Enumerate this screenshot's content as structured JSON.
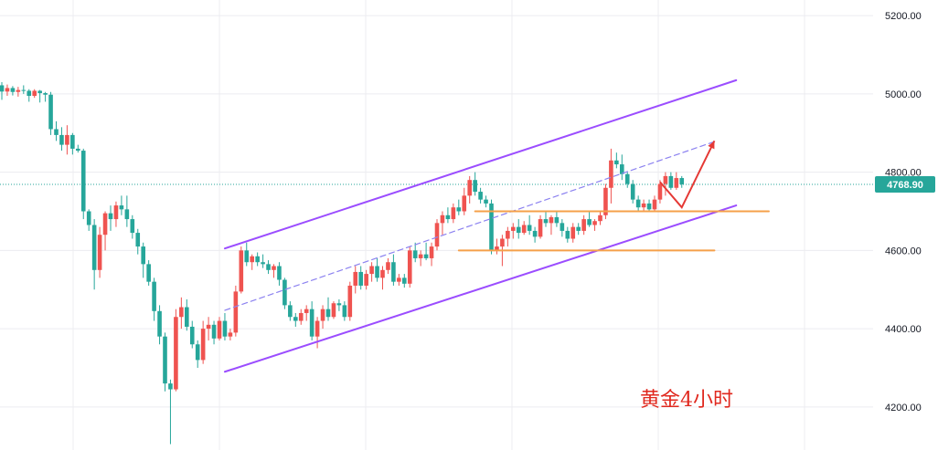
{
  "chart_data": {
    "type": "candlestick",
    "timeframe_caption": "黄金4小时",
    "ylim": [
      4090,
      5240
    ],
    "yticks": [
      4200,
      4400,
      4600,
      4800,
      5000,
      5200
    ],
    "ytick_labels": [
      "4200.00",
      "4400.00",
      "4600.00",
      "4800.00",
      "5000.00",
      "5200.00"
    ],
    "last_price": 4768.9,
    "last_price_label": "4768.90",
    "grid": true,
    "colors": {
      "up": "#ef5350",
      "down": "#26a69a",
      "channel": "#9b4dff",
      "channel_mid": "#8c82f0",
      "range": "#f5a04a",
      "arrow": "#e53935",
      "last_price": "#26a69a",
      "grid": "#ececf0",
      "caption": "#e0281e"
    },
    "candles": [
      [
        5022,
        5030,
        4985,
        5006
      ],
      [
        5006,
        5024,
        4995,
        5015
      ],
      [
        5015,
        5020,
        4996,
        5005
      ],
      [
        5005,
        5018,
        4993,
        5010
      ],
      [
        5010,
        5022,
        5000,
        5008
      ],
      [
        5008,
        5012,
        4980,
        4995
      ],
      [
        4995,
        5012,
        4990,
        5008
      ],
      [
        5008,
        5010,
        4978,
        5002
      ],
      [
        5002,
        5005,
        4980,
        4998
      ],
      [
        4998,
        5005,
        4895,
        4910
      ],
      [
        4910,
        4930,
        4880,
        4895
      ],
      [
        4895,
        4915,
        4855,
        4870
      ],
      [
        4870,
        4920,
        4845,
        4895
      ],
      [
        4895,
        4900,
        4845,
        4860
      ],
      [
        4860,
        4870,
        4850,
        4855
      ],
      [
        4855,
        4860,
        4680,
        4700
      ],
      [
        4700,
        4705,
        4650,
        4665
      ],
      [
        4665,
        4680,
        4500,
        4550
      ],
      [
        4550,
        4660,
        4530,
        4640
      ],
      [
        4640,
        4700,
        4600,
        4695
      ],
      [
        4695,
        4715,
        4650,
        4680
      ],
      [
        4680,
        4725,
        4660,
        4715
      ],
      [
        4715,
        4740,
        4690,
        4705
      ],
      [
        4705,
        4740,
        4660,
        4680
      ],
      [
        4680,
        4690,
        4630,
        4645
      ],
      [
        4645,
        4655,
        4590,
        4610
      ],
      [
        4610,
        4620,
        4530,
        4565
      ],
      [
        4565,
        4575,
        4510,
        4520
      ],
      [
        4520,
        4530,
        4420,
        4445
      ],
      [
        4445,
        4460,
        4360,
        4380
      ],
      [
        4380,
        4390,
        4240,
        4260
      ],
      [
        4260,
        4270,
        4105,
        4245
      ],
      [
        4245,
        4450,
        4240,
        4430
      ],
      [
        4430,
        4480,
        4400,
        4455
      ],
      [
        4455,
        4475,
        4395,
        4405
      ],
      [
        4405,
        4420,
        4350,
        4360
      ],
      [
        4360,
        4370,
        4300,
        4320
      ],
      [
        4320,
        4420,
        4310,
        4400
      ],
      [
        4400,
        4430,
        4370,
        4410
      ],
      [
        4410,
        4420,
        4360,
        4375
      ],
      [
        4375,
        4430,
        4370,
        4420
      ],
      [
        4420,
        4440,
        4370,
        4380
      ],
      [
        4380,
        4400,
        4370,
        4390
      ],
      [
        4390,
        4510,
        4380,
        4495
      ],
      [
        4495,
        4610,
        4490,
        4600
      ],
      [
        4600,
        4620,
        4560,
        4570
      ],
      [
        4570,
        4590,
        4550,
        4585
      ],
      [
        4585,
        4595,
        4560,
        4570
      ],
      [
        4570,
        4590,
        4555,
        4565
      ],
      [
        4565,
        4575,
        4540,
        4550
      ],
      [
        4550,
        4565,
        4530,
        4560
      ],
      [
        4560,
        4570,
        4510,
        4525
      ],
      [
        4525,
        4530,
        4450,
        4460
      ],
      [
        4460,
        4470,
        4420,
        4430
      ],
      [
        4430,
        4440,
        4405,
        4420
      ],
      [
        4420,
        4450,
        4410,
        4440
      ],
      [
        4440,
        4460,
        4420,
        4450
      ],
      [
        4450,
        4470,
        4370,
        4380
      ],
      [
        4380,
        4430,
        4350,
        4420
      ],
      [
        4420,
        4460,
        4400,
        4450
      ],
      [
        4450,
        4480,
        4420,
        4430
      ],
      [
        4430,
        4470,
        4425,
        4465
      ],
      [
        4465,
        4475,
        4445,
        4460
      ],
      [
        4460,
        4470,
        4420,
        4430
      ],
      [
        4430,
        4520,
        4420,
        4510
      ],
      [
        4510,
        4560,
        4490,
        4545
      ],
      [
        4545,
        4560,
        4500,
        4510
      ],
      [
        4510,
        4550,
        4500,
        4540
      ],
      [
        4540,
        4570,
        4520,
        4560
      ],
      [
        4560,
        4580,
        4520,
        4530
      ],
      [
        4530,
        4560,
        4500,
        4550
      ],
      [
        4550,
        4580,
        4540,
        4570
      ],
      [
        4570,
        4590,
        4510,
        4520
      ],
      [
        4520,
        4540,
        4510,
        4530
      ],
      [
        4530,
        4540,
        4505,
        4515
      ],
      [
        4515,
        4610,
        4505,
        4600
      ],
      [
        4600,
        4620,
        4570,
        4580
      ],
      [
        4580,
        4600,
        4560,
        4590
      ],
      [
        4590,
        4620,
        4575,
        4580
      ],
      [
        4580,
        4620,
        4560,
        4610
      ],
      [
        4610,
        4680,
        4600,
        4670
      ],
      [
        4670,
        4700,
        4640,
        4690
      ],
      [
        4690,
        4710,
        4670,
        4680
      ],
      [
        4680,
        4720,
        4670,
        4710
      ],
      [
        4710,
        4730,
        4690,
        4700
      ],
      [
        4700,
        4760,
        4690,
        4740
      ],
      [
        4740,
        4790,
        4720,
        4780
      ],
      [
        4780,
        4800,
        4740,
        4750
      ],
      [
        4750,
        4760,
        4720,
        4730
      ],
      [
        4730,
        4740,
        4710,
        4720
      ],
      [
        4720,
        4730,
        4590,
        4600
      ],
      [
        4600,
        4630,
        4590,
        4610
      ],
      [
        4610,
        4640,
        4560,
        4630
      ],
      [
        4630,
        4660,
        4610,
        4650
      ],
      [
        4650,
        4670,
        4630,
        4660
      ],
      [
        4660,
        4680,
        4630,
        4645
      ],
      [
        4645,
        4675,
        4640,
        4665
      ],
      [
        4665,
        4690,
        4640,
        4650
      ],
      [
        4650,
        4660,
        4620,
        4635
      ],
      [
        4635,
        4690,
        4630,
        4680
      ],
      [
        4680,
        4700,
        4660,
        4670
      ],
      [
        4670,
        4690,
        4640,
        4685
      ],
      [
        4685,
        4700,
        4660,
        4670
      ],
      [
        4670,
        4680,
        4635,
        4650
      ],
      [
        4650,
        4660,
        4620,
        4630
      ],
      [
        4630,
        4670,
        4620,
        4660
      ],
      [
        4660,
        4670,
        4640,
        4650
      ],
      [
        4650,
        4690,
        4640,
        4680
      ],
      [
        4680,
        4700,
        4660,
        4665
      ],
      [
        4665,
        4680,
        4650,
        4675
      ],
      [
        4675,
        4700,
        4665,
        4690
      ],
      [
        4690,
        4770,
        4680,
        4760
      ],
      [
        4760,
        4860,
        4720,
        4830
      ],
      [
        4830,
        4850,
        4810,
        4820
      ],
      [
        4820,
        4845,
        4780,
        4795
      ],
      [
        4795,
        4800,
        4760,
        4770
      ],
      [
        4770,
        4780,
        4720,
        4730
      ],
      [
        4730,
        4740,
        4700,
        4710
      ],
      [
        4710,
        4730,
        4700,
        4720
      ],
      [
        4720,
        4730,
        4700,
        4705
      ],
      [
        4705,
        4740,
        4700,
        4730
      ],
      [
        4730,
        4780,
        4720,
        4770
      ],
      [
        4770,
        4800,
        4740,
        4790
      ],
      [
        4790,
        4800,
        4755,
        4760
      ],
      [
        4760,
        4800,
        4755,
        4785
      ],
      [
        4785,
        4790,
        4760,
        4768.9
      ]
    ]
  }
}
